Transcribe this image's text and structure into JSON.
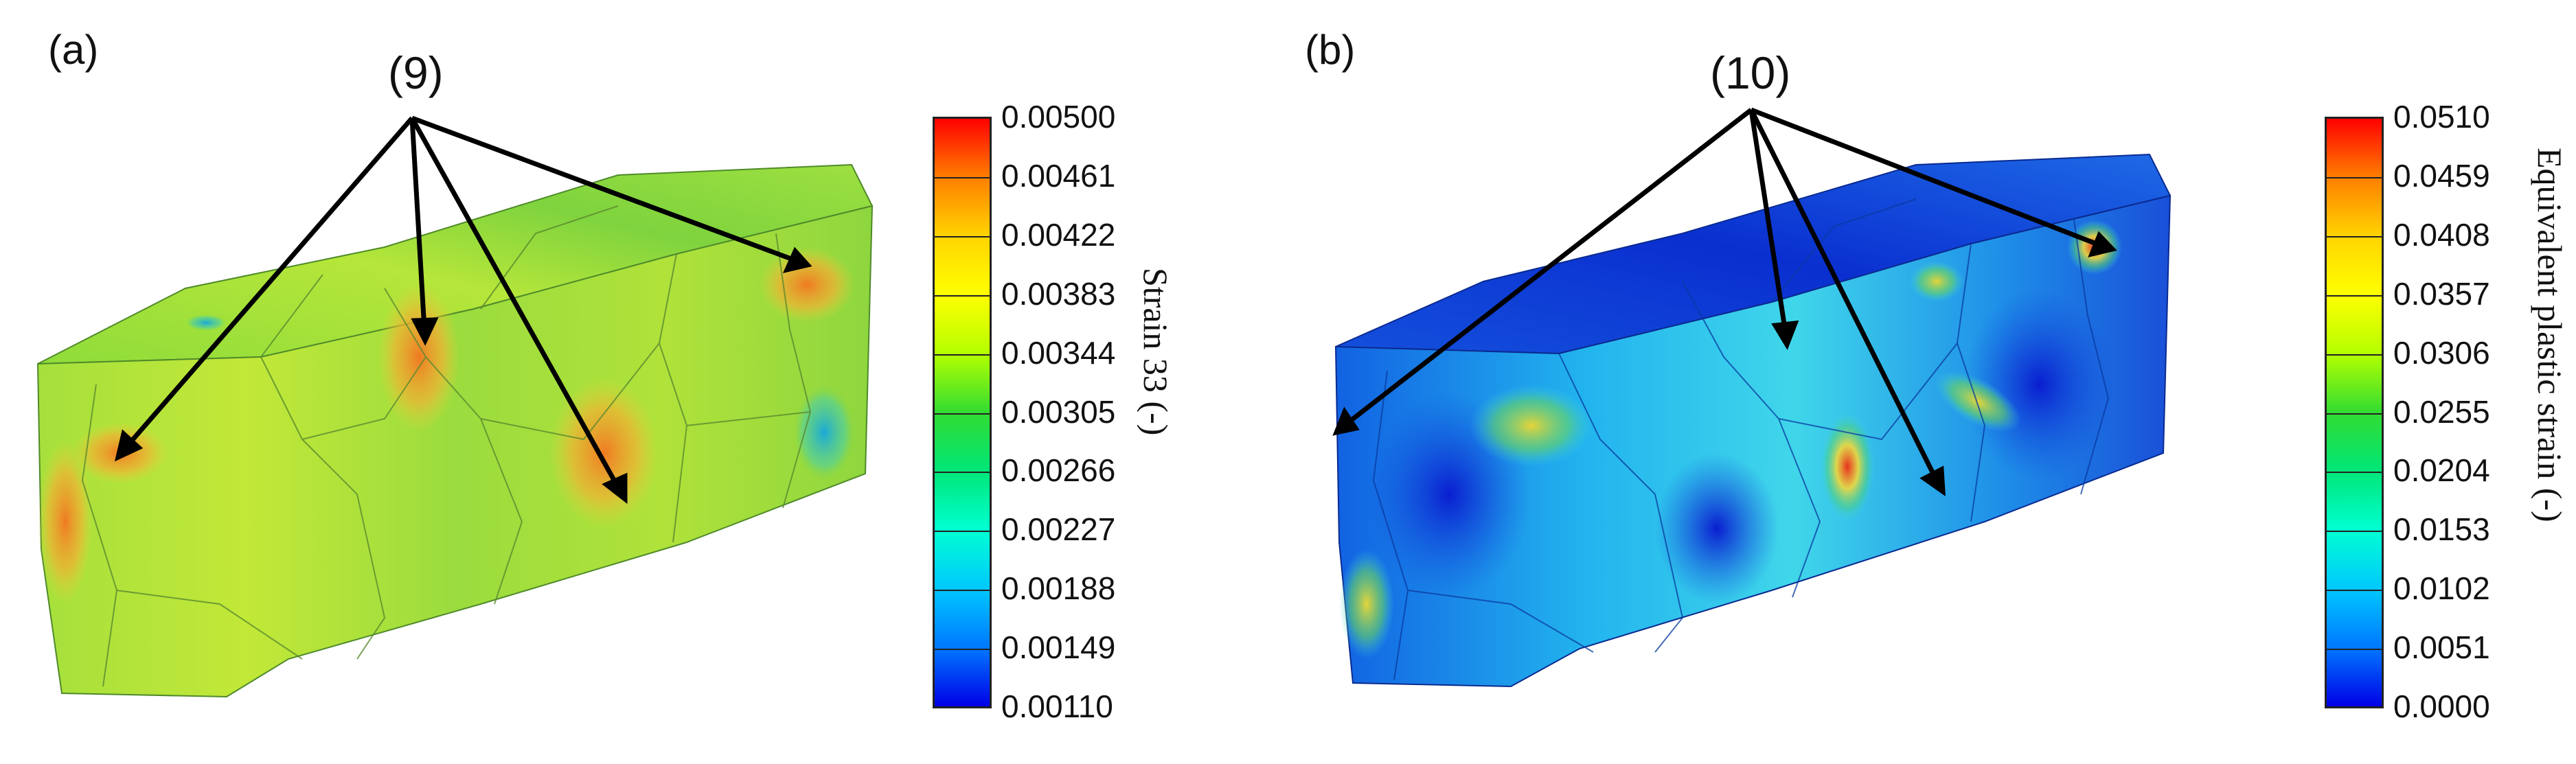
{
  "panels": [
    {
      "label": "(a)",
      "callout": "(9)",
      "colorbar": {
        "title": "Strain 33 (-)",
        "ticks": [
          "0.00500",
          "0.00461",
          "0.00422",
          "0.00383",
          "0.00344",
          "0.00305",
          "0.00266",
          "0.00227",
          "0.00188",
          "0.00149",
          "0.00110"
        ]
      }
    },
    {
      "label": "(b)",
      "callout": "(10)",
      "colorbar": {
        "title": "Equivalent plastic strain (-)",
        "ticks": [
          "0.0510",
          "0.0459",
          "0.0408",
          "0.0357",
          "0.0306",
          "0.0255",
          "0.0204",
          "0.0153",
          "0.0102",
          "0.0051",
          "0.0000"
        ]
      }
    }
  ],
  "colormap": [
    "#ff0000",
    "#ff7f00",
    "#ffd400",
    "#ffff00",
    "#b4ff00",
    "#32dc32",
    "#00e678",
    "#00ffd2",
    "#00c8ff",
    "#0078ff",
    "#0000e6"
  ]
}
